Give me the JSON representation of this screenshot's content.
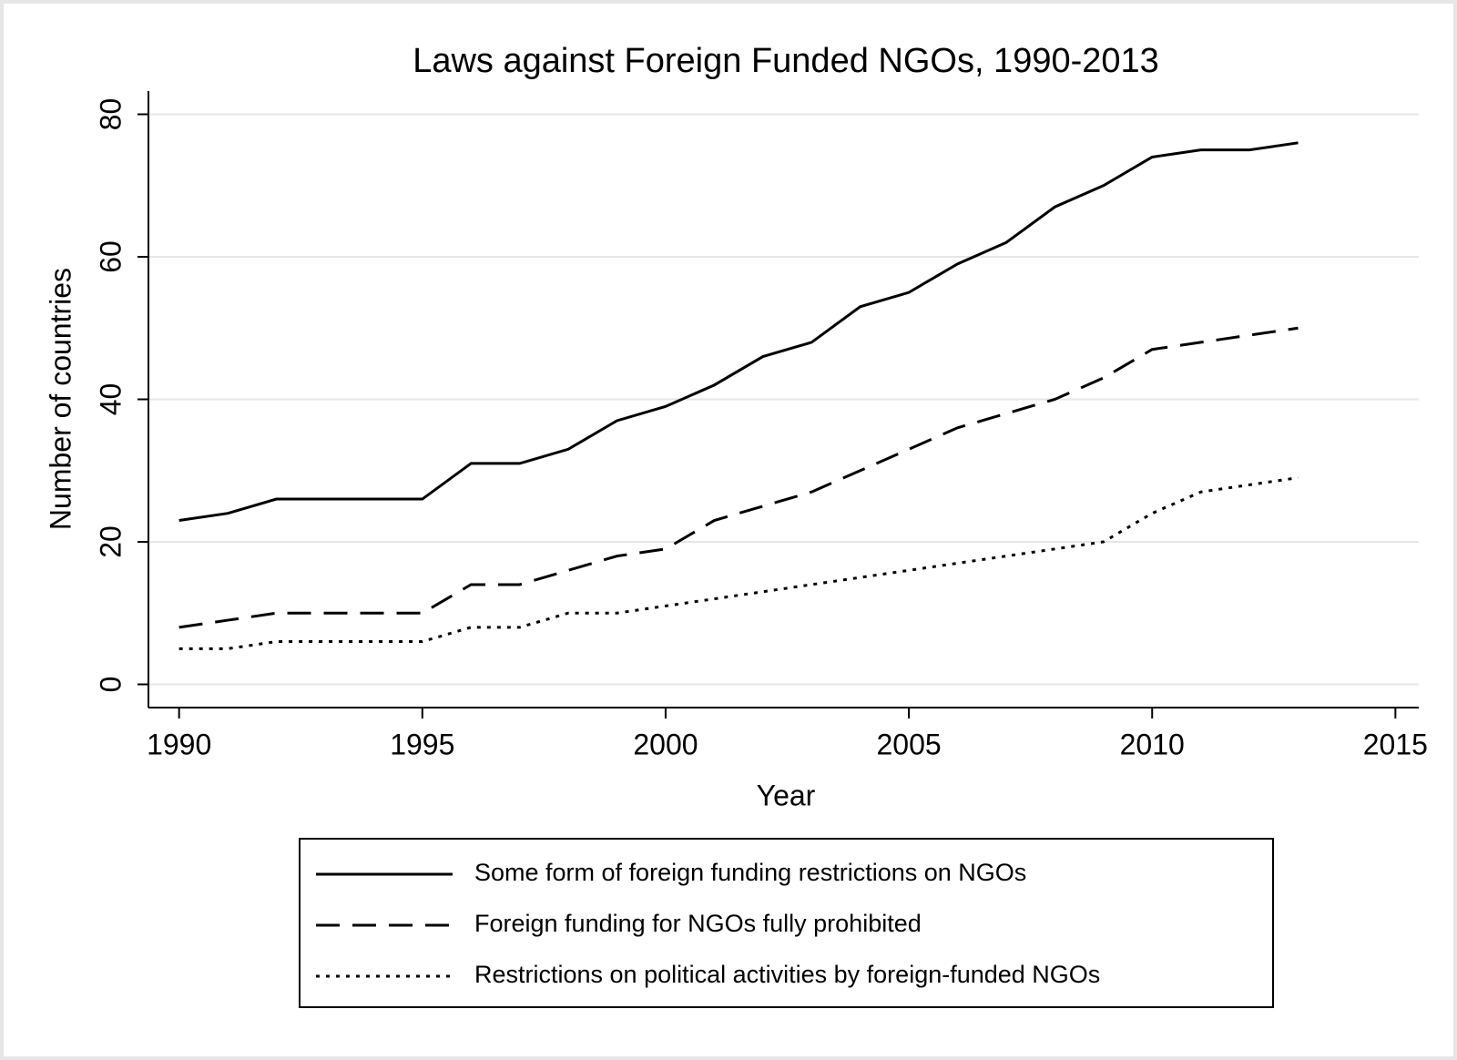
{
  "chart_data": {
    "type": "line",
    "title": "Laws against Foreign Funded NGOs, 1990-2013",
    "x_label": "Year",
    "y_label": "Number of countries",
    "x": [
      1990,
      1991,
      1992,
      1993,
      1994,
      1995,
      1996,
      1997,
      1998,
      1999,
      2000,
      2001,
      2002,
      2003,
      2004,
      2005,
      2006,
      2007,
      2008,
      2009,
      2010,
      2011,
      2012,
      2013
    ],
    "series": [
      {
        "name": "Some form of foreign funding restrictions on NGOs",
        "color": "#000000",
        "style": "solid",
        "values": [
          23,
          24,
          26,
          26,
          26,
          26,
          31,
          31,
          33,
          37,
          39,
          42,
          46,
          48,
          53,
          55,
          59,
          62,
          67,
          70,
          74,
          75,
          75,
          76
        ]
      },
      {
        "name": "Foreign funding for NGOs fully prohibited",
        "color": "#000000",
        "style": "dashed",
        "values": [
          8,
          9,
          10,
          10,
          10,
          10,
          14,
          14,
          16,
          18,
          19,
          23,
          25,
          27,
          30,
          33,
          36,
          38,
          40,
          43,
          47,
          48,
          49,
          50
        ]
      },
      {
        "name": "Restrictions on political activities by foreign-funded NGOs",
        "color": "#000000",
        "style": "dotted",
        "values": [
          5,
          5,
          6,
          6,
          6,
          6,
          8,
          8,
          10,
          10,
          11,
          12,
          13,
          14,
          15,
          16,
          17,
          18,
          19,
          20,
          24,
          27,
          28,
          29
        ]
      }
    ],
    "xlim": [
      1989.37,
      2015.48
    ],
    "xticks": [
      1990,
      1995,
      2000,
      2005,
      2010,
      2015
    ],
    "ylim": [
      -3.26,
      83.26
    ],
    "yticks": [
      0,
      20,
      40,
      60,
      80
    ],
    "grid": true,
    "legend": "bottom"
  }
}
